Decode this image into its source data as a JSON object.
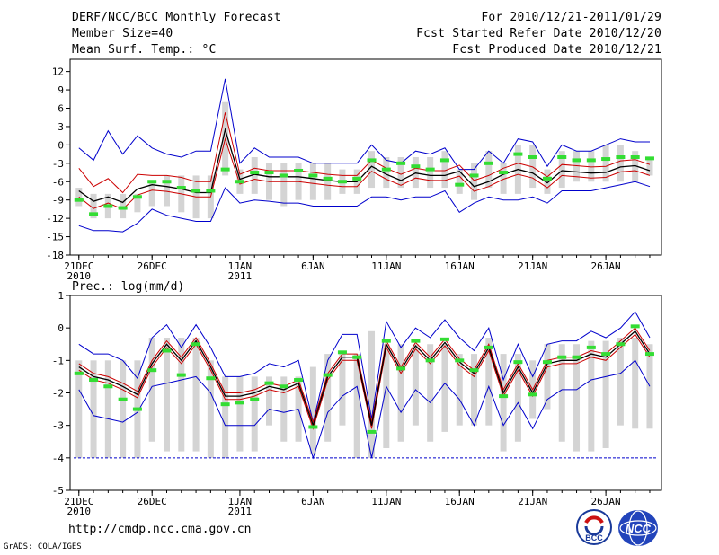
{
  "header": {
    "title": "DERF/NCC/BCC Monthly Forecast",
    "member_size": "Member Size=40",
    "variable": "Mean Surf. Temp.: °C",
    "period": "For 2010/12/21-2011/01/29",
    "started": "Fcst Started Refer Date 2010/12/20",
    "produced": "Fcst Produced Date 2010/12/21"
  },
  "footer": {
    "url": "http://cmdp.ncc.cma.gov.cn",
    "grads": "GrADS: COLA/IGES"
  },
  "logos": {
    "bcc": "BCC",
    "ncc": "NCC"
  },
  "colors": {
    "obs": "#33dd33",
    "box": "#d4d4d4",
    "mean": "#000000",
    "inner": "#cc0000",
    "outer": "#0000cc"
  },
  "chart_data": [
    {
      "type": "line",
      "title": "Mean Surf. Temp.: °C",
      "x_ticks": [
        {
          "day": 0,
          "label": "21DEC",
          "sub": "2010"
        },
        {
          "day": 5,
          "label": "26DEC",
          "sub": ""
        },
        {
          "day": 11,
          "label": "1JAN",
          "sub": "2011"
        },
        {
          "day": 16,
          "label": "6JAN",
          "sub": ""
        },
        {
          "day": 21,
          "label": "11JAN",
          "sub": ""
        },
        {
          "day": 26,
          "label": "16JAN",
          "sub": ""
        },
        {
          "day": 31,
          "label": "21JAN",
          "sub": ""
        },
        {
          "day": 36,
          "label": "26JAN",
          "sub": ""
        }
      ],
      "xlim": [
        -0.6,
        39.8
      ],
      "ylim": [
        -18,
        14
      ],
      "yticks": [
        -18,
        -15,
        -12,
        -9,
        -6,
        -3,
        0,
        3,
        6,
        9,
        12
      ],
      "series": [
        {
          "name": "box",
          "low": [
            -10,
            -12,
            -12,
            -12,
            -11,
            -10,
            -10,
            -11,
            -12,
            -12,
            -5,
            -8,
            -8,
            -9,
            -10,
            -9,
            -9,
            -9,
            -8,
            -8,
            -7,
            -7,
            -7,
            -7,
            -7,
            -7,
            -8,
            -9,
            -7,
            -8,
            -8,
            -7,
            -8,
            -7,
            -6,
            -6,
            -6,
            -6,
            -6,
            -5
          ],
          "high": [
            -7,
            -8,
            -8,
            -8,
            -8,
            -6,
            -5,
            -5,
            -5,
            -5,
            7,
            -4,
            -2,
            -3,
            -3,
            -3,
            -3,
            -3,
            -4,
            -4,
            -1,
            -2,
            -2,
            -2,
            -2,
            -1,
            -4,
            -3,
            -1,
            -3,
            0,
            0,
            -4,
            -1,
            -1,
            -1,
            0,
            0,
            -1,
            -2
          ]
        },
        {
          "name": "obs",
          "values": [
            -9,
            -11.3,
            -10,
            -10.3,
            -8.5,
            -6,
            -6,
            -7,
            -7.5,
            -7.5,
            -4,
            -6,
            -4.5,
            -4.5,
            -5,
            -4.2,
            -5,
            -5.5,
            -6,
            -5.5,
            -2.5,
            -4,
            -3,
            -3.5,
            -4,
            -2.5,
            -6.5,
            -5,
            -3,
            -4.5,
            -1.5,
            -2,
            -5.5,
            -2,
            -2.5,
            -2.5,
            -2.3,
            -2,
            -2,
            -2.2
          ]
        },
        {
          "name": "ensemble mean",
          "values": [
            -7.5,
            -9.2,
            -8.5,
            -9.4,
            -7.2,
            -6.5,
            -6.8,
            -7.2,
            -7.8,
            -7.8,
            2.5,
            -5.6,
            -4.8,
            -5.2,
            -5.2,
            -5.2,
            -5.5,
            -5.8,
            -6,
            -6,
            -3.5,
            -4.8,
            -5.8,
            -4.6,
            -5,
            -5,
            -4.3,
            -6.8,
            -6,
            -4.8,
            -4,
            -4.6,
            -6.2,
            -4.2,
            -4.4,
            -4.6,
            -4.5,
            -3.6,
            -3.4,
            -4.2
          ]
        },
        {
          "name": "spread upper",
          "values": [
            -3.8,
            -6.8,
            -5.5,
            -7.8,
            -4.8,
            -5,
            -5,
            -5.3,
            -6,
            -6,
            5.3,
            -4.8,
            -3.8,
            -4.2,
            -4.2,
            -4.2,
            -4.5,
            -4.8,
            -5,
            -5,
            -2.5,
            -3.8,
            -4.8,
            -3.8,
            -4.2,
            -4.2,
            -3.3,
            -5.8,
            -5,
            -3.8,
            -3,
            -3.6,
            -5.2,
            -3.2,
            -3.4,
            -3.6,
            -3.5,
            -2.6,
            -2.4,
            -3.2
          ]
        },
        {
          "name": "spread lower",
          "values": [
            -8.5,
            -10.4,
            -9.5,
            -10.5,
            -8.2,
            -7.4,
            -7.6,
            -8,
            -8.5,
            -8.5,
            1,
            -6.4,
            -5.6,
            -6,
            -6,
            -6,
            -6.3,
            -6.6,
            -6.8,
            -6.8,
            -4.3,
            -5.6,
            -6.6,
            -5.4,
            -5.8,
            -5.8,
            -5.1,
            -7.6,
            -6.8,
            -5.6,
            -4.8,
            -5.4,
            -7,
            -5,
            -5.2,
            -5.4,
            -5.3,
            -4.4,
            -4.2,
            -5
          ]
        },
        {
          "name": "max",
          "values": [
            -0.5,
            -2.5,
            2.3,
            -1.5,
            1.5,
            -0.5,
            -1.5,
            -2,
            -1,
            -1,
            10.8,
            -3,
            -0.5,
            -2,
            -2,
            -2,
            -3,
            -3,
            -3,
            -3,
            0,
            -2.5,
            -3,
            -1,
            -1.5,
            -0.5,
            -4,
            -4,
            -1,
            -3,
            1,
            0.5,
            -3.5,
            0,
            -1,
            -1,
            0,
            1,
            0.5,
            0.5
          ]
        },
        {
          "name": "min",
          "values": [
            -13.2,
            -14,
            -14,
            -14.2,
            -12.8,
            -10.5,
            -11.5,
            -12,
            -12.5,
            -12.5,
            -7,
            -9.5,
            -9,
            -9.2,
            -9.5,
            -9.5,
            -10,
            -10,
            -10,
            -10,
            -8.5,
            -8.5,
            -9,
            -8.5,
            -8.5,
            -7.5,
            -11,
            -9.5,
            -8.5,
            -9,
            -9,
            -8.5,
            -9.5,
            -7.5,
            -7.5,
            -7.5,
            -7,
            -6.5,
            -6,
            -6.8
          ]
        }
      ]
    },
    {
      "type": "line",
      "title": "Prec.: log(mm/d)",
      "x_ticks": [
        {
          "day": 0,
          "label": "21DEC",
          "sub": "2010"
        },
        {
          "day": 5,
          "label": "26DEC",
          "sub": ""
        },
        {
          "day": 11,
          "label": "1JAN",
          "sub": "2011"
        },
        {
          "day": 16,
          "label": "6JAN",
          "sub": ""
        },
        {
          "day": 21,
          "label": "11JAN",
          "sub": ""
        },
        {
          "day": 26,
          "label": "16JAN",
          "sub": ""
        },
        {
          "day": 31,
          "label": "21JAN",
          "sub": ""
        },
        {
          "day": 36,
          "label": "26JAN",
          "sub": ""
        }
      ],
      "xlim": [
        -0.6,
        39.8
      ],
      "ylim": [
        -5,
        1
      ],
      "yticks": [
        -5,
        -4,
        -3,
        -2,
        -1,
        0,
        1
      ],
      "baseline": -4,
      "series": [
        {
          "name": "box",
          "low": [
            -4,
            -4,
            -4,
            -4,
            -4,
            -3.5,
            -3.8,
            -3.8,
            -3.8,
            -4,
            -4,
            -3.8,
            -3.8,
            -3,
            -3.5,
            -3.5,
            -3.9,
            -3.5,
            -3,
            -4,
            -4,
            -3.7,
            -3.5,
            -3,
            -3.5,
            -3.2,
            -3,
            -3,
            -3,
            -3.8,
            -3.5,
            -2.8,
            -2.5,
            -3.5,
            -3.8,
            -3.8,
            -3.7,
            -3,
            -3.1,
            -3.1
          ],
          "high": [
            -1,
            -1,
            -1,
            -1,
            -1,
            -0.3,
            -0.3,
            -0.3,
            -0.3,
            -1,
            -1.5,
            -1.5,
            -1.5,
            -1.5,
            -1.5,
            -1.5,
            -1.2,
            -0.8,
            -0.8,
            -0.8,
            -0.1,
            -0.5,
            -0.5,
            -0.5,
            -0.5,
            -0.5,
            -0.8,
            -0.8,
            -0.3,
            -0.8,
            -0.8,
            -1,
            -0.5,
            -0.5,
            -0.5,
            -0.4,
            -0.4,
            -0.3,
            -0.3,
            -0.5
          ]
        },
        {
          "name": "obs",
          "values": [
            -1.4,
            -1.6,
            -1.8,
            -2.2,
            -2.5,
            -1.3,
            -0.7,
            -1.45,
            -0.5,
            -1.55,
            -2.35,
            -2.3,
            -2.2,
            -1.7,
            -1.8,
            -1.6,
            -3.05,
            -1.45,
            -0.75,
            -0.9,
            -3.2,
            -0.4,
            -1.25,
            -0.4,
            -1,
            -0.35,
            -1,
            -1.3,
            -0.6,
            -2.1,
            -1.05,
            -2.05,
            -1.05,
            -0.9,
            -0.9,
            -0.6,
            -0.8,
            -0.5,
            0.05,
            -0.8
          ]
        },
        {
          "name": "ensemble mean",
          "values": [
            -1.2,
            -1.5,
            -1.6,
            -1.8,
            -2.05,
            -1.1,
            -0.5,
            -1,
            -0.4,
            -1.2,
            -2.1,
            -2.1,
            -2,
            -1.8,
            -1.9,
            -1.7,
            -3,
            -1.5,
            -0.9,
            -0.9,
            -3,
            -0.5,
            -1.3,
            -0.55,
            -1,
            -0.45,
            -1.05,
            -1.4,
            -0.6,
            -2,
            -1.2,
            -2,
            -1.1,
            -1,
            -1,
            -0.8,
            -0.9,
            -0.5,
            -0.1,
            -0.8
          ]
        },
        {
          "name": "spread upper",
          "values": [
            -1.1,
            -1.4,
            -1.5,
            -1.7,
            -1.95,
            -1,
            -0.4,
            -0.9,
            -0.3,
            -1.1,
            -2,
            -2,
            -1.9,
            -1.7,
            -1.8,
            -1.6,
            -2.9,
            -1.4,
            -0.8,
            -0.8,
            -2.9,
            -0.4,
            -1.2,
            -0.45,
            -0.9,
            -0.35,
            -0.95,
            -1.3,
            -0.5,
            -1.9,
            -1.1,
            -1.9,
            -1,
            -0.9,
            -0.9,
            -0.7,
            -0.8,
            -0.4,
            0,
            -0.7
          ]
        },
        {
          "name": "spread lower",
          "values": [
            -1.3,
            -1.6,
            -1.7,
            -1.9,
            -2.15,
            -1.2,
            -0.6,
            -1.1,
            -0.5,
            -1.3,
            -2.2,
            -2.2,
            -2.1,
            -1.9,
            -2,
            -1.8,
            -3.1,
            -1.6,
            -1,
            -1,
            -3.1,
            -0.6,
            -1.4,
            -0.65,
            -1.1,
            -0.55,
            -1.15,
            -1.5,
            -0.7,
            -2.1,
            -1.3,
            -2.1,
            -1.2,
            -1.1,
            -1.1,
            -0.9,
            -1,
            -0.6,
            -0.2,
            -0.9
          ]
        },
        {
          "name": "max",
          "values": [
            -0.5,
            -0.8,
            -0.8,
            -1,
            -1.55,
            -0.3,
            0.1,
            -0.6,
            0.1,
            -0.6,
            -1.5,
            -1.5,
            -1.4,
            -1.1,
            -1.2,
            -1,
            -2.9,
            -1,
            -0.2,
            -0.2,
            -2.8,
            0.2,
            -0.6,
            0,
            -0.3,
            0.25,
            -0.3,
            -0.7,
            0,
            -1.6,
            -0.5,
            -1.5,
            -0.5,
            -0.4,
            -0.4,
            -0.1,
            -0.3,
            0,
            0.5,
            -0.3
          ]
        },
        {
          "name": "min",
          "values": [
            -1.9,
            -2.7,
            -2.8,
            -2.9,
            -2.6,
            -1.8,
            -1.7,
            -1.6,
            -1.5,
            -2,
            -3,
            -3,
            -3,
            -2.5,
            -2.6,
            -2.5,
            -4,
            -2.6,
            -2.1,
            -1.8,
            -4,
            -1.8,
            -2.6,
            -1.9,
            -2.3,
            -1.7,
            -2.2,
            -3,
            -1.8,
            -3,
            -2.3,
            -3.1,
            -2.2,
            -1.9,
            -1.9,
            -1.6,
            -1.5,
            -1.4,
            -1,
            -1.8
          ]
        }
      ]
    }
  ]
}
